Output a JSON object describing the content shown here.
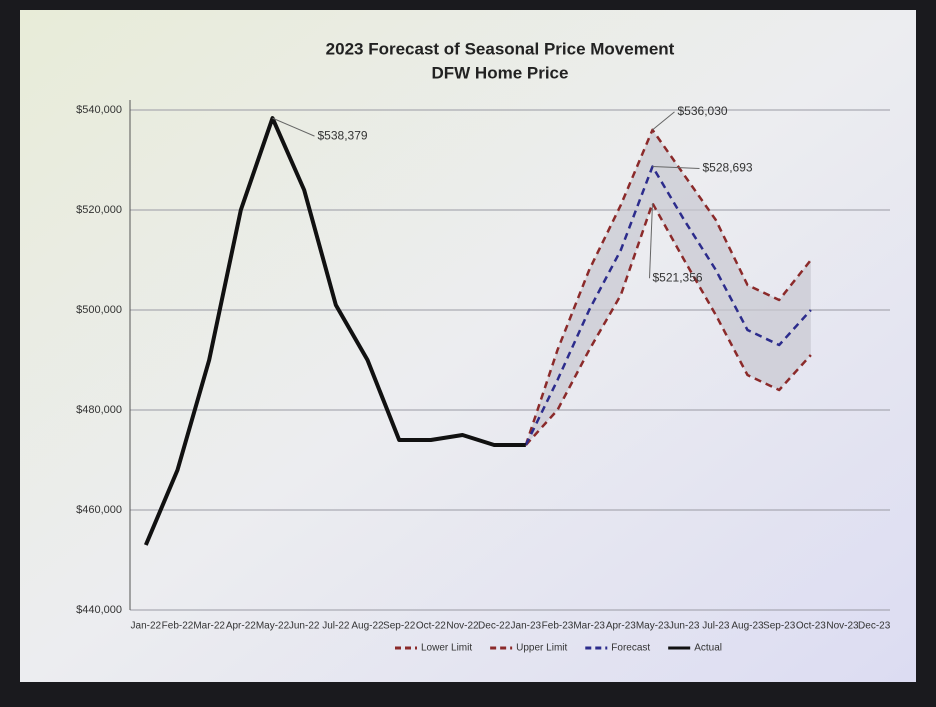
{
  "chart_data": {
    "type": "line",
    "title": "2023 Forecast of Seasonal Price Movement",
    "subtitle": "DFW Home Price",
    "categories": [
      "Jan-22",
      "Feb-22",
      "Mar-22",
      "Apr-22",
      "May-22",
      "Jun-22",
      "Jul-22",
      "Aug-22",
      "Sep-22",
      "Oct-22",
      "Nov-22",
      "Dec-22",
      "Jan-23",
      "Feb-23",
      "Mar-23",
      "Apr-23",
      "May-23",
      "Jun-23",
      "Jul-23",
      "Aug-23",
      "Sep-23",
      "Oct-23",
      "Nov-23",
      "Dec-23"
    ],
    "series": [
      {
        "name": "Lower Limit",
        "color": "#8b2a2a",
        "dashed": true,
        "values": [
          null,
          null,
          null,
          null,
          null,
          null,
          null,
          null,
          null,
          null,
          null,
          null,
          473000,
          480000,
          492000,
          503000,
          521356,
          510000,
          499000,
          487000,
          484000,
          491000,
          null,
          null
        ],
        "value_labels": [
          null,
          null,
          null,
          null,
          null,
          null,
          null,
          null,
          null,
          null,
          null,
          null,
          null,
          null,
          null,
          null,
          "$521,356",
          null,
          null,
          null,
          null,
          null,
          null,
          null
        ]
      },
      {
        "name": "Upper Limit",
        "color": "#8b2a2a",
        "dashed": true,
        "values": [
          null,
          null,
          null,
          null,
          null,
          null,
          null,
          null,
          null,
          null,
          null,
          null,
          473000,
          492000,
          508000,
          521000,
          536030,
          527000,
          518000,
          505000,
          502000,
          510000,
          null,
          null
        ],
        "value_labels": [
          null,
          null,
          null,
          null,
          null,
          null,
          null,
          null,
          null,
          null,
          null,
          null,
          null,
          null,
          null,
          null,
          "$536,030",
          null,
          null,
          null,
          null,
          null,
          null,
          null
        ]
      },
      {
        "name": "Forecast",
        "color": "#2c2c8c",
        "dashed": true,
        "values": [
          null,
          null,
          null,
          null,
          null,
          null,
          null,
          null,
          null,
          null,
          null,
          null,
          473000,
          486000,
          500000,
          512000,
          528693,
          518000,
          508000,
          496000,
          493000,
          500000,
          null,
          null
        ],
        "value_labels": [
          null,
          null,
          null,
          null,
          null,
          null,
          null,
          null,
          null,
          null,
          null,
          null,
          null,
          null,
          null,
          null,
          "$528,693",
          null,
          null,
          null,
          null,
          null,
          null,
          null
        ]
      },
      {
        "name": "Actual",
        "color": "#111111",
        "dashed": false,
        "values": [
          453000,
          468000,
          490000,
          520000,
          538379,
          524000,
          501000,
          490000,
          474000,
          474000,
          475000,
          473000,
          473000,
          null,
          null,
          null,
          null,
          null,
          null,
          null,
          null,
          null,
          null,
          null
        ],
        "value_labels": [
          null,
          null,
          null,
          null,
          "$538,379",
          null,
          null,
          null,
          null,
          null,
          null,
          null,
          null,
          null,
          null,
          null,
          null,
          null,
          null,
          null,
          null,
          null,
          null,
          null
        ]
      }
    ],
    "band_color": "#c8c8d0",
    "ylim": [
      440000,
      540000
    ],
    "yticks": [
      {
        "value": 440000,
        "label": "$440,000"
      },
      {
        "value": 460000,
        "label": "$460,000"
      },
      {
        "value": 480000,
        "label": "$480,000"
      },
      {
        "value": 500000,
        "label": "$500,000"
      },
      {
        "value": 520000,
        "label": "$520,000"
      },
      {
        "value": 540000,
        "label": "$540,000"
      }
    ],
    "grid": true,
    "legend": "bottom"
  }
}
